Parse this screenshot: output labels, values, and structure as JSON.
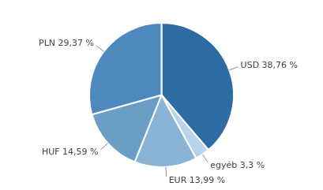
{
  "chart_data": {
    "type": "pie",
    "categories": [
      "USD 38,76 %",
      "egyéb 3,3 %",
      "EUR 13,99 %",
      "HUF 14,59 %",
      "PLN 29,37 %"
    ],
    "values": [
      38.76,
      3.3,
      13.99,
      14.59,
      29.37
    ],
    "colors": [
      "#2E6DA4",
      "#B8D4EA",
      "#8AB4D5",
      "#6A9EC4",
      "#4F88BC"
    ]
  }
}
